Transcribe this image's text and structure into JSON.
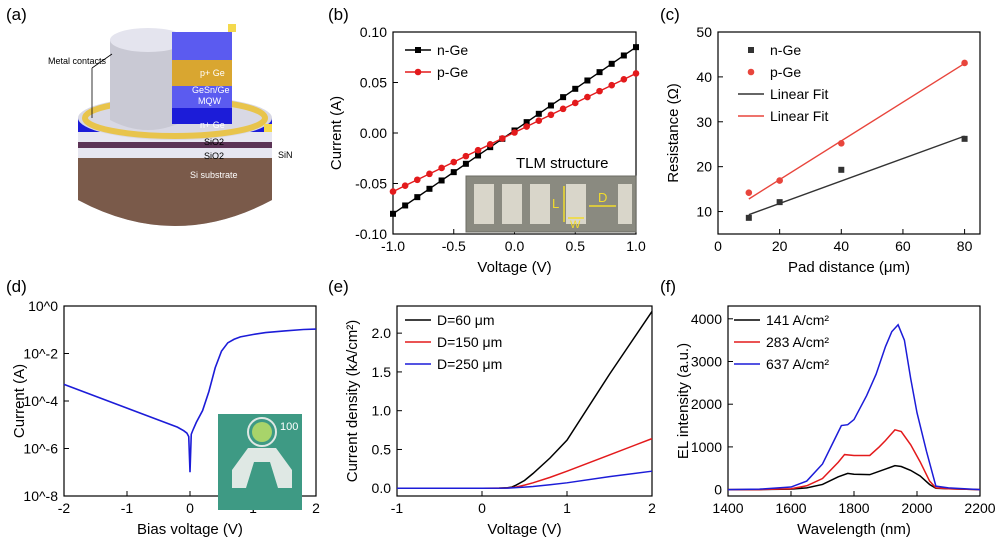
{
  "panels": [
    {
      "label": "(a)"
    },
    {
      "label": "(b)"
    },
    {
      "label": "(c)"
    },
    {
      "label": "(d)"
    },
    {
      "label": "(e)"
    },
    {
      "label": "(f)"
    }
  ],
  "schematic": {
    "layers": [
      "p+ Ge",
      "GeSn/Ge",
      "MQW",
      "n+ Ge",
      "SiO2",
      "SiO2",
      "SiN",
      "Si substrate"
    ],
    "metal_label": "Metal contacts",
    "colors": {
      "metal": "#e8c44c",
      "pge": "#5b5bf0",
      "mqw": "#d9a630",
      "nge": "#1c1cd8",
      "sio2": "#e6e6f0",
      "sin": "#5b3355",
      "si": "#7a5a4a"
    }
  },
  "tlm_inset": {
    "title": "TLM structure",
    "labels": [
      "L",
      "W",
      "D"
    ]
  },
  "chip_inset": {
    "label": "100"
  },
  "chart_data": [
    {
      "id": "b",
      "type": "line",
      "title": "",
      "xlabel": "Voltage (V)",
      "ylabel": "Current (A)",
      "xlim": [
        -1.0,
        1.0
      ],
      "ylim": [
        -0.1,
        0.1
      ],
      "xticks": [
        "-1.0",
        "-0.5",
        "0.0",
        "0.5",
        "1.0"
      ],
      "yticks": [
        "-0.10",
        "-0.05",
        "0.00",
        "0.05",
        "0.10"
      ],
      "legend_position": "top-left",
      "series": [
        {
          "name": "n-Ge",
          "color": "#000000",
          "marker": "square",
          "x_range": [
            -1.0,
            1.0
          ],
          "y_range": [
            -0.08,
            0.085
          ],
          "points": 21
        },
        {
          "name": "p-Ge",
          "color": "#e31a1c",
          "marker": "circle",
          "x_range": [
            -1.0,
            1.0
          ],
          "y_range": [
            -0.058,
            0.059
          ],
          "points": 21
        }
      ]
    },
    {
      "id": "c",
      "type": "scatter",
      "title": "",
      "xlabel": "Pad distance (μm)",
      "ylabel": "Resistance (Ω)",
      "xlim": [
        0,
        85
      ],
      "ylim": [
        5,
        50
      ],
      "xticks": [
        "0",
        "20",
        "40",
        "60",
        "80"
      ],
      "yticks": [
        "10",
        "20",
        "30",
        "40",
        "50"
      ],
      "legend_position": "top-left",
      "series": [
        {
          "name": "n-Ge",
          "color": "#333333",
          "marker": "square",
          "x": [
            10,
            20,
            40,
            80
          ],
          "y": [
            8.6,
            12.1,
            19.3,
            26.2
          ]
        },
        {
          "name": "p-Ge",
          "color": "#e8453c",
          "marker": "circle",
          "x": [
            10,
            20,
            40,
            80
          ],
          "y": [
            14.2,
            16.9,
            25.2,
            43.1
          ]
        }
      ],
      "fits": [
        {
          "name": "Linear Fit",
          "color": "#333333",
          "x": [
            10,
            80
          ],
          "y": [
            9.3,
            26.8
          ]
        },
        {
          "name": "Linear Fit",
          "color": "#e8453c",
          "x": [
            10,
            80
          ],
          "y": [
            12.8,
            43.0
          ]
        }
      ]
    },
    {
      "id": "d",
      "type": "line",
      "title": "",
      "xlabel": "Bias voltage (V)",
      "ylabel": "Current (A)",
      "xlim": [
        -2,
        2
      ],
      "ylim_log10": [
        -8,
        0
      ],
      "yscale": "log",
      "xticks": [
        "-2",
        "-1",
        "0",
        "1",
        "2"
      ],
      "yticks": [
        "10^-8",
        "10^-6",
        "10^-4",
        "10^-2",
        "10^0"
      ],
      "series": [
        {
          "name": "",
          "color": "#1c1cd8",
          "x": [
            -2,
            -1.5,
            -1,
            -0.5,
            -0.2,
            -0.1,
            -0.05,
            -0.02,
            0,
            0.02,
            0.05,
            0.1,
            0.2,
            0.3,
            0.4,
            0.5,
            0.6,
            0.7,
            0.8,
            1.0,
            1.2,
            1.5,
            1.8,
            2.0
          ],
          "log10_y": [
            -3.3,
            -3.8,
            -4.3,
            -4.8,
            -5.1,
            -5.25,
            -5.35,
            -5.5,
            -7.0,
            -5.4,
            -5.2,
            -4.9,
            -4.4,
            -3.6,
            -2.6,
            -1.9,
            -1.55,
            -1.4,
            -1.3,
            -1.2,
            -1.12,
            -1.05,
            -0.99,
            -0.97
          ]
        }
      ]
    },
    {
      "id": "e",
      "type": "line",
      "title": "",
      "xlabel": "Voltage (V)",
      "ylabel": "Current density (kA/cm²)",
      "xlim": [
        -1,
        2
      ],
      "ylim": [
        -0.1,
        2.35
      ],
      "xticks": [
        "-1",
        "0",
        "1",
        "2"
      ],
      "yticks": [
        "0.0",
        "0.5",
        "1.0",
        "1.5",
        "2.0"
      ],
      "legend_position": "top-left",
      "series": [
        {
          "name": "D=60 μm",
          "color": "#000000",
          "x": [
            -1,
            0,
            0.2,
            0.3,
            0.35,
            0.4,
            0.5,
            0.6,
            0.8,
            1.0,
            1.5,
            2.0
          ],
          "y": [
            0,
            0,
            0.002,
            0.006,
            0.015,
            0.04,
            0.1,
            0.19,
            0.39,
            0.62,
            1.47,
            2.28
          ]
        },
        {
          "name": "D=150 μm",
          "color": "#e31a1c",
          "x": [
            -1,
            0,
            0.3,
            0.4,
            0.5,
            0.6,
            0.8,
            1.0,
            1.5,
            2.0
          ],
          "y": [
            0,
            0,
            0.003,
            0.015,
            0.04,
            0.07,
            0.14,
            0.22,
            0.43,
            0.64
          ]
        },
        {
          "name": "D=250 μm",
          "color": "#1c1cd8",
          "x": [
            -1,
            0,
            0.3,
            0.4,
            0.5,
            0.6,
            0.8,
            1.0,
            1.5,
            2.0
          ],
          "y": [
            0,
            0,
            0.002,
            0.008,
            0.015,
            0.023,
            0.045,
            0.07,
            0.15,
            0.22
          ]
        }
      ]
    },
    {
      "id": "f",
      "type": "line",
      "title": "",
      "xlabel": "Wavelength (nm)",
      "ylabel": "EL intensity (a.u.)",
      "xlim": [
        1400,
        2200
      ],
      "ylim": [
        -150,
        4300
      ],
      "xticks": [
        "1400",
        "1600",
        "1800",
        "2000",
        "2200"
      ],
      "yticks": [
        "0",
        "1000",
        "2000",
        "3000",
        "4000"
      ],
      "legend_position": "top-left",
      "series": [
        {
          "name": "141 A/cm²",
          "color": "#000000",
          "x": [
            1400,
            1500,
            1600,
            1650,
            1700,
            1750,
            1780,
            1800,
            1850,
            1900,
            1930,
            1950,
            1980,
            2010,
            2040,
            2060,
            2100,
            2200
          ],
          "y": [
            0,
            0,
            10,
            40,
            120,
            300,
            380,
            360,
            350,
            480,
            560,
            540,
            450,
            320,
            120,
            30,
            20,
            0
          ]
        },
        {
          "name": "283 A/cm²",
          "color": "#e31a1c",
          "x": [
            1400,
            1500,
            1600,
            1650,
            1700,
            1750,
            1770,
            1800,
            1850,
            1880,
            1900,
            1930,
            1950,
            1980,
            2010,
            2040,
            2060,
            2100,
            2200
          ],
          "y": [
            0,
            0,
            20,
            90,
            260,
            640,
            820,
            800,
            800,
            1000,
            1150,
            1400,
            1360,
            1050,
            650,
            200,
            40,
            20,
            0
          ]
        },
        {
          "name": "637 A/cm²",
          "color": "#1c1cd8",
          "x": [
            1400,
            1500,
            1600,
            1650,
            1700,
            1740,
            1760,
            1780,
            1800,
            1840,
            1870,
            1900,
            1920,
            1940,
            1960,
            1980,
            2000,
            2030,
            2060,
            2100,
            2200
          ],
          "y": [
            0,
            10,
            60,
            200,
            600,
            1200,
            1500,
            1520,
            1640,
            2200,
            2700,
            3350,
            3700,
            3860,
            3500,
            2600,
            1800,
            900,
            80,
            40,
            0
          ]
        }
      ]
    }
  ]
}
